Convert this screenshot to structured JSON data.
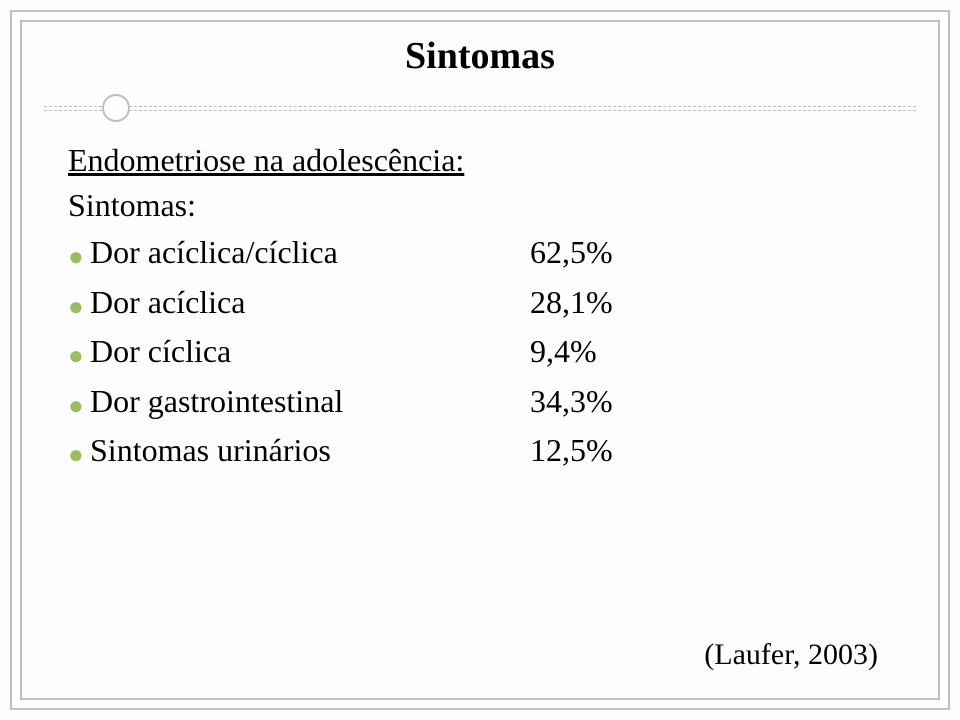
{
  "title": "Sintomas",
  "section_title": "Endometriose na adolescência:",
  "sub_label": "Sintomas:",
  "bullet_color": "#9dbb61",
  "border_color": "#bfbfbf",
  "rows": [
    {
      "label": "Dor acíclica/cíclica",
      "value": "62,5%"
    },
    {
      "label": "Dor acíclica",
      "value": "28,1%"
    },
    {
      "label": "Dor cíclica",
      "value": "9,4%"
    },
    {
      "label": "Dor gastrointestinal",
      "value": "34,3%"
    },
    {
      "label": "Sintomas urinários",
      "value": "12,5%"
    }
  ],
  "citation": "(Laufer, 2003)"
}
